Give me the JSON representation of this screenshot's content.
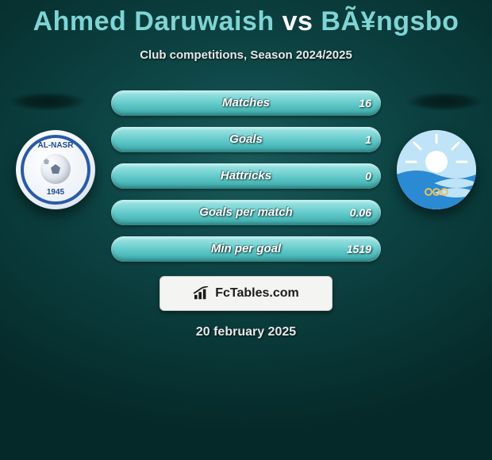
{
  "header": {
    "player1": "Ahmed Daruwaish",
    "vs": "vs",
    "player2": "BÃ¥ngsbo",
    "subtitle": "Club competitions, Season 2024/2025",
    "title_fontsize": 34,
    "p1_color": "#7fd4d4",
    "vs_color": "#ffffff",
    "p2_color": "#7fd4d4"
  },
  "badges": {
    "left": {
      "top_text": "AL-NASR",
      "bottom_text": "1945",
      "ring_color": "#2a5aa8",
      "bg_color": "#ffffff"
    },
    "right": {
      "sky_color": "#bfe3f7",
      "wave_color": "#2a8ad4",
      "sun_color": "#ffffff",
      "ring_gold": "#e8c060"
    }
  },
  "stats": {
    "bar_bg": "#e6e6e6",
    "fill_gradient_top": "#a7e8e8",
    "fill_gradient_mid": "#5fc8c8",
    "fill_gradient_bot": "#3aa8a8",
    "label_color": "#ffffff",
    "value_color": "#ffffff",
    "rows": [
      {
        "label": "Matches",
        "value_right": "16",
        "fill_pct": 100
      },
      {
        "label": "Goals",
        "value_right": "1",
        "fill_pct": 100
      },
      {
        "label": "Hattricks",
        "value_right": "0",
        "fill_pct": 100
      },
      {
        "label": "Goals per match",
        "value_right": "0.06",
        "fill_pct": 100
      },
      {
        "label": "Min per goal",
        "value_right": "1519",
        "fill_pct": 100
      }
    ]
  },
  "brand": {
    "text": "FcTables.com",
    "box_bg": "#f4f4f2",
    "box_border": "#cfcfca",
    "icon_color": "#1b1b1b"
  },
  "footer": {
    "date": "20 february 2025"
  },
  "canvas": {
    "bg_inner": "#1a5a5a",
    "bg_outer": "#052828"
  }
}
